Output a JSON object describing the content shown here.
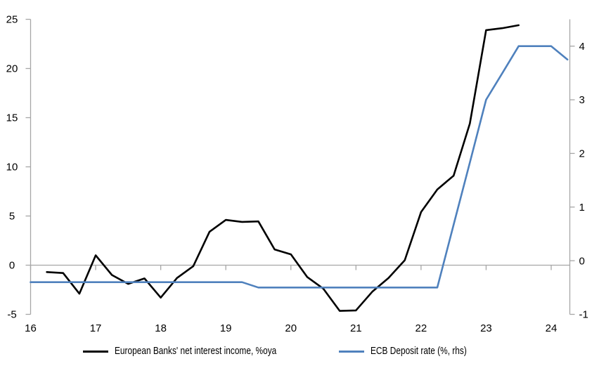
{
  "chart_data": {
    "type": "line",
    "title": "",
    "grid": "zero-line-only",
    "legend_position": "bottom-left",
    "x_axis": {
      "min": 16,
      "max": 24.3,
      "ticks": [
        16,
        17,
        18,
        19,
        20,
        21,
        22,
        23,
        24
      ]
    },
    "y_axis_left": {
      "min": -5,
      "max": 25,
      "ticks": [
        25,
        20,
        15,
        10,
        5,
        0,
        -5
      ]
    },
    "y_axis_right": {
      "min": -1,
      "max": 4.5,
      "ticks": [
        4,
        3,
        2,
        1,
        0,
        -1
      ]
    },
    "series": [
      {
        "name": "European Banks' net interest income, %oya",
        "axis": "left",
        "color": "#000000",
        "x": [
          16.25,
          16.5,
          16.75,
          17.0,
          17.25,
          17.5,
          17.75,
          18.0,
          18.25,
          18.5,
          18.75,
          19.0,
          19.25,
          19.5,
          19.75,
          20.0,
          20.25,
          20.5,
          20.75,
          21.0,
          21.25,
          21.5,
          21.75,
          22.0,
          22.25,
          22.5,
          22.75,
          23.0,
          23.25,
          23.5
        ],
        "values": [
          -0.7,
          -0.8,
          -2.9,
          1.0,
          -1.0,
          -1.9,
          -1.35,
          -3.3,
          -1.3,
          -0.1,
          3.4,
          4.6,
          4.4,
          4.45,
          1.6,
          1.1,
          -1.2,
          -2.4,
          -4.65,
          -4.6,
          -2.7,
          -1.3,
          0.5,
          5.4,
          7.7,
          9.1,
          14.4,
          23.9,
          24.1,
          24.4
        ]
      },
      {
        "name": "ECB Deposit rate (%, rhs)",
        "axis": "right",
        "color": "#4f81bd",
        "x": [
          16.0,
          16.25,
          16.5,
          16.75,
          17.0,
          17.25,
          17.5,
          17.75,
          18.0,
          18.25,
          18.5,
          18.75,
          19.0,
          19.25,
          19.5,
          19.75,
          20.0,
          20.25,
          20.5,
          20.75,
          21.0,
          21.25,
          21.5,
          21.75,
          22.0,
          22.25,
          22.5,
          22.75,
          23.0,
          23.25,
          23.5,
          23.75,
          24.0,
          24.25
        ],
        "values": [
          -0.4,
          -0.4,
          -0.4,
          -0.4,
          -0.4,
          -0.4,
          -0.4,
          -0.4,
          -0.4,
          -0.4,
          -0.4,
          -0.4,
          -0.4,
          -0.4,
          -0.5,
          -0.5,
          -0.5,
          -0.5,
          -0.5,
          -0.5,
          -0.5,
          -0.5,
          -0.5,
          -0.5,
          -0.5,
          -0.5,
          0.67,
          1.83,
          3.0,
          3.5,
          4.0,
          4.0,
          4.0,
          3.75
        ]
      }
    ]
  },
  "colors": {
    "background": "#ffffff",
    "axis": "#a6a6a6",
    "text": "#000000",
    "series_nii": "#000000",
    "series_ecb": "#4f81bd"
  }
}
